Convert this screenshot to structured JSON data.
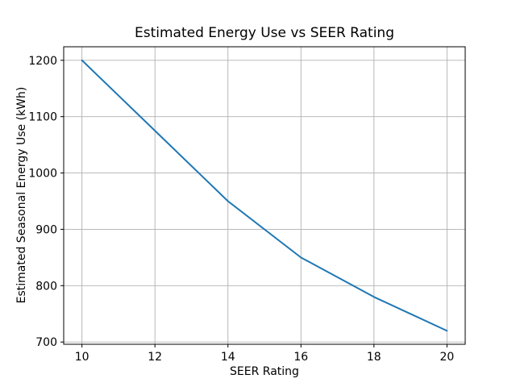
{
  "chart_data": {
    "type": "line",
    "title": "Estimated Energy Use vs SEER Rating",
    "xlabel": "SEER Rating",
    "ylabel": "Estimated Seasonal Energy Use (kWh)",
    "x": [
      10,
      12,
      14,
      16,
      18,
      20
    ],
    "y": [
      1200,
      1075,
      950,
      850,
      780,
      720
    ],
    "series": [
      {
        "name": "Estimated Seasonal Energy Use",
        "x": [
          10,
          12,
          14,
          16,
          18,
          20
        ],
        "values": [
          1200,
          1075,
          950,
          850,
          780,
          720
        ]
      }
    ],
    "xlim": [
      9.5,
      20.5
    ],
    "ylim": [
      696,
      1224
    ],
    "x_ticks": [
      10,
      12,
      14,
      16,
      18,
      20
    ],
    "y_ticks": [
      700,
      800,
      900,
      1000,
      1100,
      1200
    ],
    "grid": true,
    "legend": false,
    "line_color": "#1f77b4",
    "grid_color": "#b0b0b0",
    "spine_color": "#000000",
    "text_color": "#000000",
    "background": "#ffffff"
  }
}
